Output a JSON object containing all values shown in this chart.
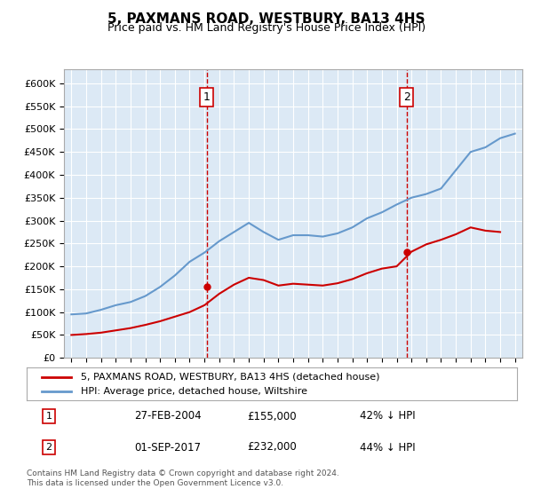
{
  "title": "5, PAXMANS ROAD, WESTBURY, BA13 4HS",
  "subtitle": "Price paid vs. HM Land Registry's House Price Index (HPI)",
  "ylabel": "",
  "background_color": "#dce9f5",
  "plot_bg": "#dce9f5",
  "red_line_color": "#cc0000",
  "blue_line_color": "#6699cc",
  "ylim": [
    0,
    630000
  ],
  "yticks": [
    0,
    50000,
    100000,
    150000,
    200000,
    250000,
    300000,
    350000,
    400000,
    450000,
    500000,
    550000,
    600000
  ],
  "ytick_labels": [
    "£0",
    "£50K",
    "£100K",
    "£150K",
    "£200K",
    "£250K",
    "£300K",
    "£350K",
    "£400K",
    "£450K",
    "£500K",
    "£550K",
    "£600K"
  ],
  "xmin": 1994.5,
  "xmax": 2025.5,
  "annotation1": {
    "x": 2004.15,
    "label": "1",
    "price": 155000,
    "date": "27-FEB-2004"
  },
  "annotation2": {
    "x": 2017.67,
    "label": "2",
    "price": 232000,
    "date": "01-SEP-2017"
  },
  "legend_line1": "5, PAXMANS ROAD, WESTBURY, BA13 4HS (detached house)",
  "legend_line2": "HPI: Average price, detached house, Wiltshire",
  "table_row1": [
    "1",
    "27-FEB-2004",
    "£155,000",
    "42% ↓ HPI"
  ],
  "table_row2": [
    "2",
    "01-SEP-2017",
    "£232,000",
    "44% ↓ HPI"
  ],
  "footer": "Contains HM Land Registry data © Crown copyright and database right 2024.\nThis data is licensed under the Open Government Licence v3.0.",
  "hpi_years": [
    1995,
    1996,
    1997,
    1998,
    1999,
    2000,
    2001,
    2002,
    2003,
    2004,
    2005,
    2006,
    2007,
    2008,
    2009,
    2010,
    2011,
    2012,
    2013,
    2014,
    2015,
    2016,
    2017,
    2018,
    2019,
    2020,
    2021,
    2022,
    2023,
    2024,
    2025
  ],
  "hpi_values": [
    95000,
    97000,
    105000,
    115000,
    122000,
    135000,
    155000,
    180000,
    210000,
    230000,
    255000,
    275000,
    295000,
    275000,
    258000,
    268000,
    268000,
    265000,
    272000,
    285000,
    305000,
    318000,
    335000,
    350000,
    358000,
    370000,
    410000,
    450000,
    460000,
    480000,
    490000
  ],
  "red_years": [
    1995,
    1996,
    1997,
    1998,
    1999,
    2000,
    2001,
    2002,
    2003,
    2004,
    2005,
    2006,
    2007,
    2008,
    2009,
    2010,
    2011,
    2012,
    2013,
    2014,
    2015,
    2016,
    2017,
    2018,
    2019,
    2020,
    2021,
    2022,
    2023,
    2024
  ],
  "red_values": [
    50000,
    52000,
    55000,
    60000,
    65000,
    72000,
    80000,
    90000,
    100000,
    115000,
    140000,
    160000,
    175000,
    170000,
    158000,
    162000,
    160000,
    158000,
    163000,
    172000,
    185000,
    195000,
    200000,
    232000,
    248000,
    258000,
    270000,
    285000,
    278000,
    275000
  ]
}
